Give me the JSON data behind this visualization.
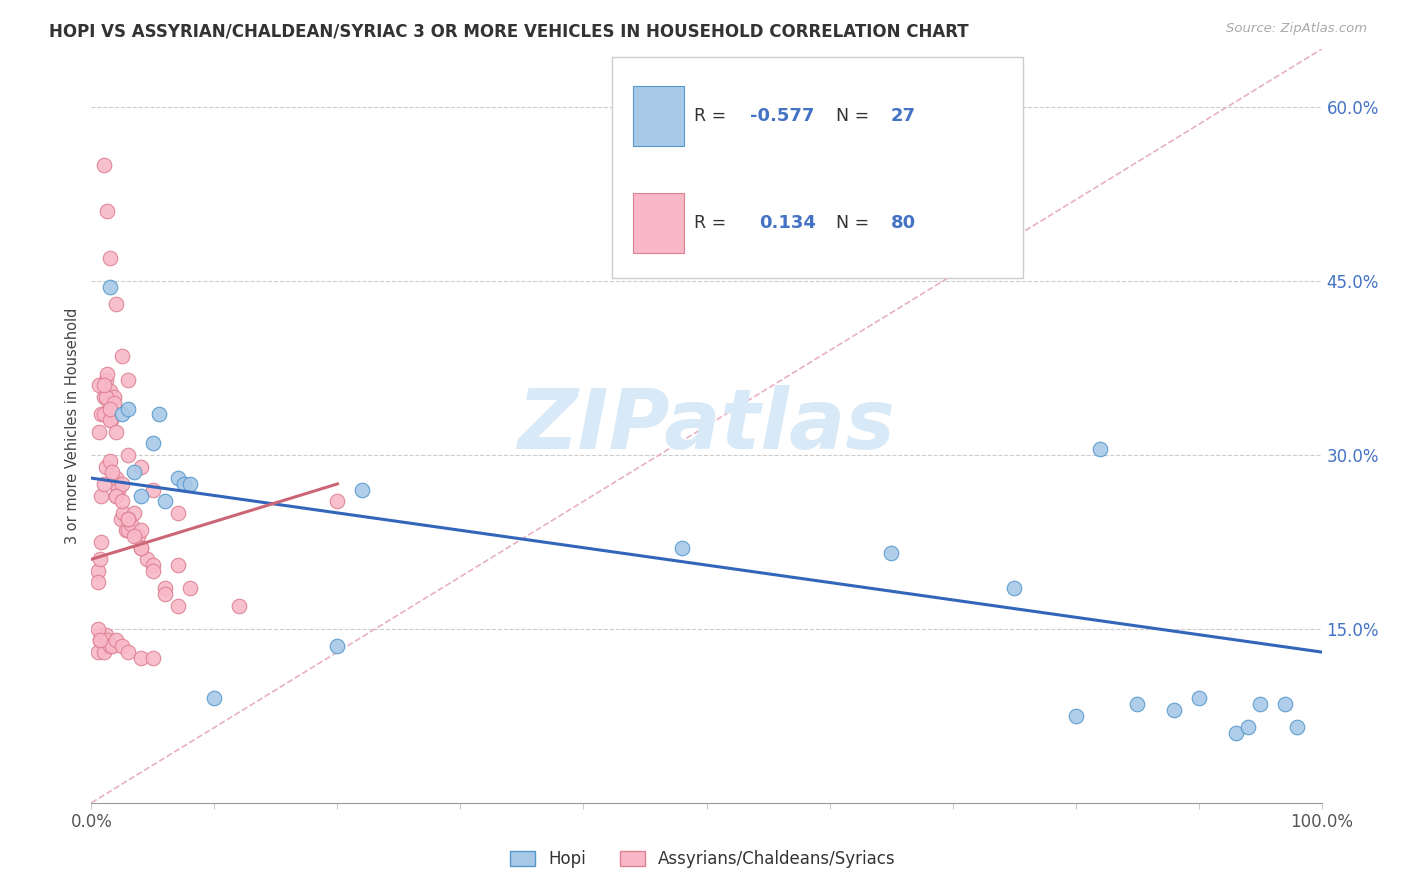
{
  "title": "HOPI VS ASSYRIAN/CHALDEAN/SYRIAC 3 OR MORE VEHICLES IN HOUSEHOLD CORRELATION CHART",
  "source": "Source: ZipAtlas.com",
  "ylabel": "3 or more Vehicles in Household",
  "xlim": [
    0,
    100
  ],
  "ylim": [
    0,
    65
  ],
  "ytick_values": [
    15,
    30,
    45,
    60
  ],
  "ytick_labels": [
    "15.0%",
    "30.0%",
    "45.0%",
    "60.0%"
  ],
  "xtick_values": [
    0,
    10,
    20,
    30,
    40,
    50,
    60,
    70,
    80,
    90,
    100
  ],
  "xtick_edge_labels": [
    "0.0%",
    "100.0%"
  ],
  "hopi_R": -0.577,
  "hopi_N": 27,
  "assyrian_R": 0.134,
  "assyrian_N": 80,
  "hopi_color": "#a8c8e8",
  "hopi_edge_color": "#5599cc",
  "assyrian_color": "#f8b8c8",
  "assyrian_edge_color": "#dd8090",
  "hopi_line_color": "#3366bb",
  "assyrian_line_color": "#cc6677",
  "ref_line_color": "#e8b0c0",
  "ref_line_style": "--",
  "background_color": "#ffffff",
  "watermark_text": "ZIPatlas",
  "watermark_color": "#d8eaf8",
  "hopi_x": [
    1.5,
    2.5,
    3.0,
    3.5,
    4.0,
    5.0,
    5.5,
    6.0,
    7.0,
    7.5,
    8.0,
    10.0,
    20.0,
    22.0,
    48.0,
    65.0,
    75.0,
    80.0,
    82.0,
    85.0,
    88.0,
    90.0,
    93.0,
    94.0,
    95.0,
    97.0,
    98.0
  ],
  "hopi_y": [
    44.5,
    33.5,
    34.0,
    28.5,
    26.5,
    31.0,
    33.5,
    26.0,
    28.0,
    27.5,
    27.5,
    9.0,
    13.5,
    27.0,
    22.0,
    21.5,
    18.5,
    7.5,
    30.5,
    8.5,
    8.0,
    9.0,
    6.0,
    6.5,
    8.5,
    8.5,
    6.5
  ],
  "assyrian_x": [
    0.5,
    0.8,
    1.0,
    1.2,
    1.3,
    1.4,
    1.5,
    1.6,
    1.8,
    2.0,
    2.2,
    2.4,
    2.6,
    2.8,
    3.0,
    3.2,
    3.5,
    3.8,
    4.0,
    4.5,
    5.0,
    6.0,
    7.0,
    8.0,
    0.6,
    0.8,
    1.0,
    1.2,
    1.5,
    1.8,
    2.0,
    2.5,
    3.0,
    4.0,
    0.5,
    0.7,
    0.8,
    1.0,
    1.2,
    1.3,
    1.5,
    1.7,
    2.0,
    2.5,
    3.0,
    4.0,
    5.0,
    0.5,
    0.7,
    1.0,
    1.3,
    1.5,
    2.0,
    2.5,
    3.0,
    0.5,
    0.7,
    0.8,
    1.0,
    1.2,
    1.5,
    1.7,
    2.0,
    2.5,
    3.0,
    3.5,
    4.0,
    5.0,
    6.0,
    7.0,
    0.6,
    1.0,
    1.5,
    2.0,
    3.0,
    4.0,
    5.0,
    7.0,
    12.0,
    20.0
  ],
  "assyrian_y": [
    20.0,
    22.5,
    35.0,
    36.5,
    37.0,
    34.5,
    35.5,
    33.0,
    35.0,
    28.0,
    27.0,
    24.5,
    25.0,
    23.5,
    23.5,
    24.0,
    25.0,
    23.0,
    23.5,
    21.0,
    20.5,
    18.5,
    20.5,
    18.5,
    32.0,
    33.5,
    33.5,
    35.0,
    33.0,
    34.5,
    26.5,
    27.5,
    24.5,
    22.0,
    13.0,
    14.0,
    14.5,
    13.0,
    14.5,
    14.0,
    13.5,
    13.5,
    14.0,
    13.5,
    13.0,
    12.5,
    12.5,
    19.0,
    21.0,
    55.0,
    51.0,
    47.0,
    43.0,
    38.5,
    36.5,
    15.0,
    14.0,
    26.5,
    27.5,
    29.0,
    29.5,
    28.5,
    26.5,
    26.0,
    24.5,
    23.0,
    22.0,
    20.0,
    18.0,
    17.0,
    36.0,
    36.0,
    34.0,
    32.0,
    30.0,
    29.0,
    27.0,
    25.0,
    17.0,
    26.0
  ],
  "hopi_line_x0": 0,
  "hopi_line_x1": 100,
  "hopi_line_y0": 28.0,
  "hopi_line_y1": 13.0,
  "assyrian_line_x0": 0,
  "assyrian_line_x1": 20,
  "assyrian_line_y0": 21.0,
  "assyrian_line_y1": 27.5,
  "ref_line_x0": 0,
  "ref_line_x1": 100,
  "ref_line_y0": 0,
  "ref_line_y1": 65
}
